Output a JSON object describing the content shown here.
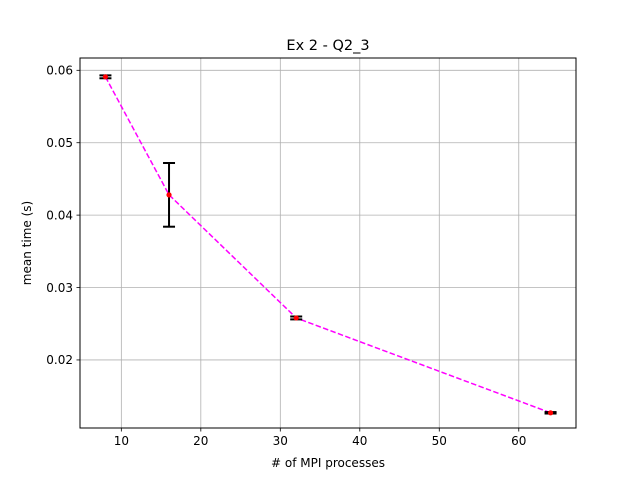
{
  "chart_data": {
    "type": "line",
    "title": "Ex 2 - Q2_3",
    "xlabel": "# of MPI processes",
    "ylabel": "mean time (s)",
    "xlim": [
      4.8,
      67.2
    ],
    "ylim": [
      0.0106,
      0.0617
    ],
    "x_ticks": [
      10,
      20,
      30,
      40,
      50,
      60
    ],
    "y_ticks": [
      0.02,
      0.03,
      0.04,
      0.05,
      0.06
    ],
    "x_tick_labels": [
      "10",
      "20",
      "30",
      "40",
      "50",
      "60"
    ],
    "y_tick_labels": [
      "0.02",
      "0.03",
      "0.04",
      "0.05",
      "0.06"
    ],
    "grid": true,
    "series": [
      {
        "x": [
          8,
          16,
          32,
          64
        ],
        "y": [
          0.0591,
          0.0428,
          0.0258,
          0.0127
        ],
        "yerr": [
          0.0002,
          0.0044,
          0.0002,
          0.0001
        ],
        "line_color": "#ff00ff",
        "line_style": "dashed",
        "marker_color": "#ff0000",
        "errorbar_color": "#000000"
      }
    ]
  }
}
